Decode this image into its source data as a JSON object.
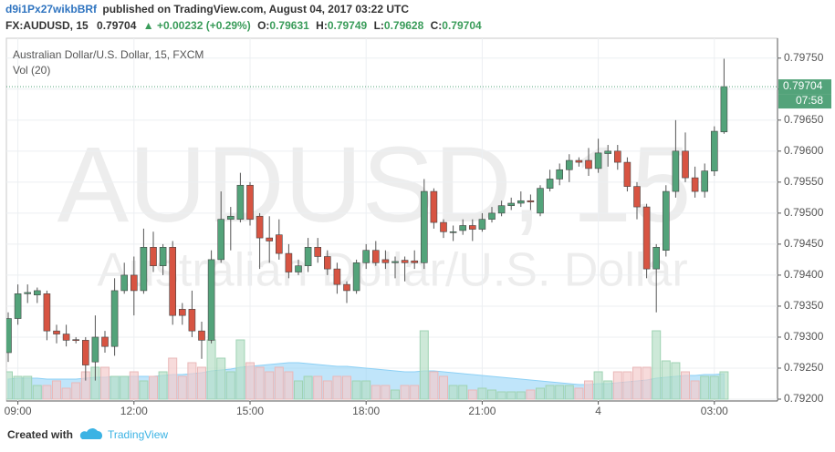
{
  "header": {
    "author": "d9i1Px27wikbBRf",
    "published": "published on TradingView.com, August 04, 2017 03:22 UTC",
    "symbol": "FX:AUDUSD, 15",
    "last": "0.79704",
    "change": "▲ +0.00232 (+0.29%)",
    "ohlc": [
      {
        "label": "O:",
        "value": "0.79631"
      },
      {
        "label": "H:",
        "value": "0.79749"
      },
      {
        "label": "L:",
        "value": "0.79628"
      },
      {
        "label": "C:",
        "value": "0.79704"
      }
    ]
  },
  "chart_data": {
    "type": "candlestick",
    "legend": [
      "Australian Dollar/U.S. Dollar, 15, FXCM",
      "Vol (20)"
    ],
    "watermark": {
      "symbol": "AUDUSD, 15",
      "description": "Australian Dollar/U.S. Dollar"
    },
    "categories": [
      null,
      "09:00",
      null,
      null,
      null,
      null,
      null,
      null,
      null,
      null,
      null,
      null,
      null,
      "12:00",
      null,
      null,
      null,
      null,
      null,
      null,
      null,
      null,
      null,
      null,
      null,
      "15:00",
      null,
      null,
      null,
      null,
      null,
      null,
      null,
      null,
      null,
      null,
      null,
      "18:00",
      null,
      null,
      null,
      null,
      null,
      null,
      null,
      null,
      null,
      null,
      null,
      "21:00",
      null,
      null,
      null,
      null,
      null,
      null,
      null,
      null,
      null,
      null,
      null,
      "4",
      null,
      null,
      null,
      null,
      null,
      null,
      null,
      null,
      null,
      null,
      null,
      "03:00",
      null
    ],
    "open": [
      0.79275,
      0.7933,
      0.7937,
      0.79368,
      0.7937,
      0.7931,
      0.79305,
      0.79296,
      0.79295,
      0.7926,
      0.793,
      0.79285,
      0.79375,
      0.794,
      0.79375,
      0.79445,
      0.79415,
      0.79445,
      0.79345,
      0.79345,
      0.7931,
      0.79295,
      0.79425,
      0.7949,
      0.7949,
      0.79545,
      0.79495,
      0.7946,
      0.79465,
      0.79435,
      0.79405,
      0.79415,
      0.79445,
      0.7943,
      0.7941,
      0.79385,
      0.79375,
      0.7942,
      0.7944,
      0.79425,
      0.7942,
      0.79424,
      0.79423,
      0.7942,
      0.79535,
      0.79485,
      0.7947,
      0.79472,
      0.7948,
      0.79474,
      0.7949,
      0.795,
      0.79512,
      0.79516,
      0.7952,
      0.795,
      0.7954,
      0.79555,
      0.7957,
      0.79585,
      0.79585,
      0.79572,
      0.79596,
      0.796,
      0.79582,
      0.79543,
      0.7951,
      0.7941,
      0.7944,
      0.79535,
      0.796,
      0.79557,
      0.79535,
      0.79568,
      0.79631
    ],
    "high": [
      0.7934,
      0.79385,
      0.79385,
      0.7938,
      0.79375,
      0.7932,
      0.7932,
      0.793,
      0.793,
      0.79335,
      0.7931,
      0.79395,
      0.7942,
      0.7943,
      0.79475,
      0.7947,
      0.7945,
      0.79455,
      0.79355,
      0.79375,
      0.79325,
      0.7944,
      0.79535,
      0.7951,
      0.79565,
      0.7955,
      0.795,
      0.79495,
      0.7949,
      0.7945,
      0.79425,
      0.7946,
      0.7946,
      0.7944,
      0.7942,
      0.7939,
      0.79425,
      0.7945,
      0.79455,
      0.7944,
      0.7943,
      0.7943,
      0.7944,
      0.79555,
      0.7954,
      0.7949,
      0.7948,
      0.7949,
      0.7949,
      0.795,
      0.7951,
      0.7952,
      0.79525,
      0.79535,
      0.7953,
      0.79545,
      0.7957,
      0.7958,
      0.79595,
      0.7959,
      0.79605,
      0.7962,
      0.7961,
      0.7961,
      0.7959,
      0.7955,
      0.79515,
      0.7945,
      0.79545,
      0.7965,
      0.7963,
      0.79575,
      0.7958,
      0.7964,
      0.79749
    ],
    "low": [
      0.7926,
      0.7932,
      0.79355,
      0.79355,
      0.79295,
      0.7929,
      0.79285,
      0.7929,
      0.7923,
      0.7923,
      0.79275,
      0.7927,
      0.7937,
      0.79335,
      0.7937,
      0.79405,
      0.794,
      0.7932,
      0.7932,
      0.793,
      0.79265,
      0.7929,
      0.7942,
      0.7944,
      0.79485,
      0.7948,
      0.7941,
      0.7942,
      0.79425,
      0.79395,
      0.794,
      0.79405,
      0.7942,
      0.794,
      0.7937,
      0.79355,
      0.7937,
      0.7941,
      0.79415,
      0.7941,
      0.79395,
      0.7939,
      0.7941,
      0.7941,
      0.79475,
      0.7946,
      0.79455,
      0.79465,
      0.79455,
      0.7947,
      0.79485,
      0.79495,
      0.79505,
      0.7951,
      0.79505,
      0.79495,
      0.79535,
      0.79545,
      0.7955,
      0.79575,
      0.7956,
      0.79565,
      0.79575,
      0.7957,
      0.79535,
      0.7949,
      0.79395,
      0.7934,
      0.7943,
      0.79525,
      0.7955,
      0.79525,
      0.79525,
      0.7956,
      0.79628
    ],
    "close": [
      0.7933,
      0.7937,
      0.79372,
      0.79375,
      0.7931,
      0.79305,
      0.79295,
      0.79295,
      0.79255,
      0.793,
      0.79285,
      0.79375,
      0.794,
      0.79375,
      0.79445,
      0.79415,
      0.79445,
      0.79335,
      0.79335,
      0.7931,
      0.79295,
      0.79425,
      0.7949,
      0.79495,
      0.79545,
      0.7949,
      0.7946,
      0.79455,
      0.79435,
      0.79405,
      0.79415,
      0.79445,
      0.7943,
      0.7941,
      0.79385,
      0.79375,
      0.7942,
      0.7944,
      0.7942,
      0.7942,
      0.79422,
      0.7942,
      0.7942,
      0.79535,
      0.79485,
      0.7947,
      0.7947,
      0.7948,
      0.79474,
      0.7949,
      0.795,
      0.79512,
      0.79516,
      0.7952,
      0.79518,
      0.7954,
      0.79555,
      0.7957,
      0.79585,
      0.79582,
      0.79572,
      0.79597,
      0.796,
      0.79582,
      0.79543,
      0.7951,
      0.7941,
      0.79445,
      0.79535,
      0.796,
      0.79557,
      0.79535,
      0.79568,
      0.79632,
      0.79704
    ],
    "volume": [
      30,
      25,
      25,
      15,
      15,
      20,
      12,
      18,
      30,
      35,
      35,
      25,
      25,
      30,
      20,
      25,
      30,
      45,
      25,
      40,
      35,
      65,
      45,
      30,
      65,
      40,
      35,
      30,
      35,
      30,
      20,
      25,
      25,
      20,
      25,
      25,
      20,
      20,
      15,
      15,
      10,
      15,
      15,
      75,
      30,
      25,
      15,
      15,
      10,
      12,
      10,
      8,
      8,
      8,
      10,
      12,
      15,
      15,
      15,
      12,
      20,
      30,
      20,
      30,
      30,
      35,
      35,
      75,
      42,
      40,
      30,
      20,
      25,
      25,
      30
    ],
    "volume_ma": [
      22,
      23,
      23,
      23,
      22,
      22,
      22,
      22,
      23,
      24,
      24,
      25,
      25,
      25,
      25,
      25,
      26,
      27,
      27,
      28,
      29,
      31,
      32,
      33,
      35,
      36,
      37,
      38,
      39,
      40,
      40,
      39,
      38,
      37,
      36,
      36,
      35,
      34,
      33,
      32,
      31,
      30,
      30,
      31,
      31,
      30,
      29,
      28,
      27,
      26,
      25,
      24,
      23,
      22,
      21,
      20,
      19,
      18,
      17,
      16,
      16,
      17,
      17,
      18,
      19,
      20,
      21,
      23,
      24,
      25,
      26,
      26,
      27,
      27,
      28
    ],
    "up_color": "#53a37a",
    "down_color": "#d75442",
    "ma_color": "#8cd0f5",
    "ylim": [
      0.792,
      0.79782
    ],
    "yticks": [
      {
        "value": 0.792,
        "label": "0.79200"
      },
      {
        "value": 0.7925,
        "label": "0.79250"
      },
      {
        "value": 0.793,
        "label": "0.79300"
      },
      {
        "value": 0.7935,
        "label": "0.79350"
      },
      {
        "value": 0.794,
        "label": "0.79400"
      },
      {
        "value": 0.7945,
        "label": "0.79450"
      },
      {
        "value": 0.795,
        "label": "0.79500"
      },
      {
        "value": 0.7955,
        "label": "0.79550"
      },
      {
        "value": 0.796,
        "label": "0.79600"
      },
      {
        "value": 0.7965,
        "label": "0.79650"
      },
      {
        "value": 0.797,
        "label": "0.79700"
      },
      {
        "value": 0.7975,
        "label": "0.79750"
      }
    ],
    "last_price": {
      "value": 0.79704,
      "label": "0.79704"
    },
    "countdown": "07:58",
    "grid": true
  },
  "footer": {
    "created": "Created with",
    "brand": "TradingView"
  }
}
